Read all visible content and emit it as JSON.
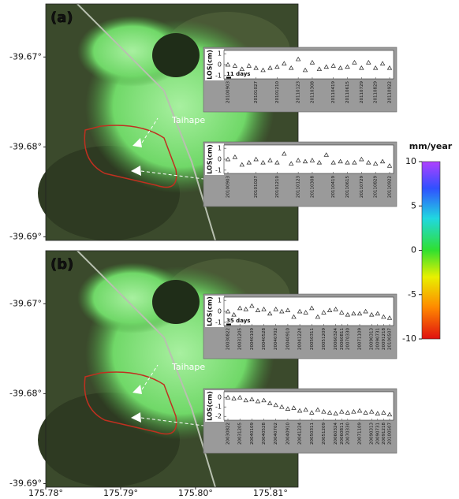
{
  "map": {
    "lon_lim": [
      175.78,
      175.8137
    ],
    "lon_ticks": [
      {
        "value": 175.78,
        "label": "175.78°"
      },
      {
        "value": 175.79,
        "label": "175.79°"
      },
      {
        "value": 175.8,
        "label": "175.80°"
      },
      {
        "value": 175.81,
        "label": "175.81°"
      }
    ],
    "lat_lim": [
      -39.6904,
      -39.6641
    ],
    "lat_ticks": [
      {
        "value": -39.67,
        "label": "-39.67°"
      },
      {
        "value": -39.68,
        "label": "-39.68°"
      },
      {
        "value": -39.69,
        "label": "-39.69°"
      }
    ]
  },
  "panels": [
    {
      "label": "(a)",
      "place": "Taihape",
      "insets": [
        {
          "y_label": "LOS(cm)",
          "note": "11 days",
          "ylim": [
            -1.3,
            1.3
          ],
          "yticks": [
            1,
            0,
            -1
          ],
          "categories": [
            "20100903",
            null,
            null,
            null,
            "20101027",
            null,
            null,
            "20101210",
            null,
            null,
            "20110123",
            null,
            "20110308",
            null,
            null,
            "20110419",
            null,
            "20110615",
            null,
            "20110729",
            null,
            "20110829",
            null,
            "20110922"
          ],
          "values": [
            0,
            -0.1,
            -0.4,
            -0.1,
            -0.3,
            -0.5,
            -0.3,
            -0.2,
            0.1,
            -0.3,
            0.5,
            -0.5,
            0.2,
            -0.4,
            -0.2,
            -0.1,
            -0.3,
            -0.2,
            0.2,
            -0.3,
            0.2,
            -0.3,
            0.1,
            -0.3
          ]
        },
        {
          "y_label": "LOS(cm)",
          "ylim": [
            -1.3,
            1.3
          ],
          "yticks": [
            1,
            0,
            -1
          ],
          "categories": [
            "20100903",
            null,
            null,
            null,
            "20101027",
            null,
            null,
            "20101210",
            null,
            null,
            "20110123",
            null,
            "20110308",
            null,
            null,
            "20110419",
            null,
            "20110615",
            null,
            "20110729",
            null,
            "20110829",
            null,
            "20110922"
          ],
          "values": [
            0,
            0.2,
            -0.5,
            -0.3,
            0,
            -0.3,
            -0.1,
            -0.3,
            0.5,
            -0.4,
            -0.1,
            -0.2,
            -0.1,
            -0.3,
            0.4,
            -0.3,
            -0.2,
            -0.3,
            -0.3,
            0,
            -0.3,
            -0.4,
            -0.2,
            -0.6
          ]
        }
      ]
    },
    {
      "label": "(b)",
      "place": "Taihape",
      "insets": [
        {
          "y_label": "LOS(cm)",
          "note": "35 days",
          "ylim": [
            -1.3,
            1.3
          ],
          "yticks": [
            1,
            0,
            -1
          ],
          "categories": [
            "20030822",
            null,
            "20031205",
            null,
            "20040109",
            null,
            "20040528",
            null,
            "20040702",
            null,
            "20040910",
            null,
            "20041224",
            null,
            "20050311",
            null,
            "20051209",
            null,
            "20060324",
            "20060811",
            "20070330",
            null,
            "20071109",
            null,
            "20090313",
            "20090731",
            "20091218",
            "20100507"
          ],
          "values": [
            0,
            -0.3,
            0.3,
            0.2,
            0.5,
            0.1,
            0.2,
            -0.2,
            0.2,
            0,
            0.1,
            -0.5,
            0,
            -0.1,
            0.3,
            -0.5,
            -0.1,
            0.1,
            0.2,
            -0.1,
            -0.3,
            -0.2,
            -0.2,
            0,
            -0.3,
            -0.2,
            -0.5,
            -0.6
          ]
        },
        {
          "y_label": "LOS(cm)",
          "ylim": [
            -2.4,
            0.6
          ],
          "yticks": [
            0,
            -1,
            -2
          ],
          "categories": [
            "20030822",
            null,
            "20031205",
            null,
            "20040109",
            null,
            "20040528",
            null,
            "20040702",
            null,
            "20040910",
            null,
            "20041224",
            null,
            "20050311",
            null,
            "20051209",
            null,
            "20060324",
            "20060811",
            "20070330",
            null,
            "20071109",
            null,
            "20090313",
            "20090731",
            "20091218",
            "20100507"
          ],
          "values": [
            0,
            -0.1,
            0,
            -0.3,
            -0.2,
            -0.4,
            -0.3,
            -0.6,
            -0.8,
            -1,
            -1.2,
            -1.1,
            -1.4,
            -1.3,
            -1.6,
            -1.3,
            -1.5,
            -1.6,
            -1.7,
            -1.5,
            -1.6,
            -1.5,
            -1.4,
            -1.6,
            -1.5,
            -1.7,
            -1.6,
            -1.8
          ]
        }
      ]
    }
  ],
  "colorbar": {
    "label": "mm/year",
    "lim": [
      -10,
      10
    ],
    "ticks": [
      10,
      5,
      0,
      -5,
      -10
    ]
  }
}
